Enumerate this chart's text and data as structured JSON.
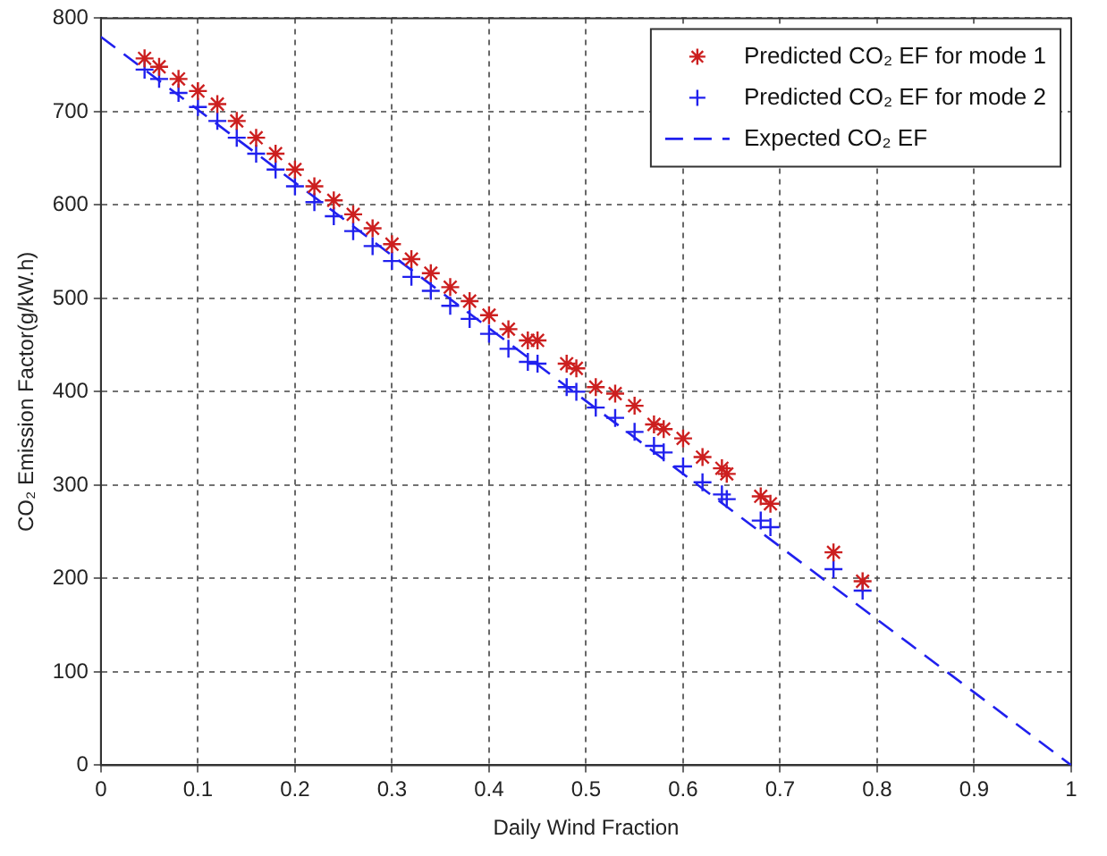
{
  "chart_data": {
    "type": "scatter",
    "xlabel": "Daily Wind Fraction",
    "ylabel": "CO₂ Emission Factor(g/kW.h)",
    "xlim": [
      0,
      1
    ],
    "xticks": [
      0,
      0.1,
      0.2,
      0.3,
      0.4,
      0.5,
      0.6,
      0.7,
      0.8,
      0.9,
      1
    ],
    "ylim": [
      0,
      800
    ],
    "yticks": [
      0,
      100,
      200,
      300,
      400,
      500,
      600,
      700,
      800
    ],
    "grid": true,
    "legend": "top right",
    "series": [
      {
        "name": "Predicted CO₂ EF for mode 1",
        "type": "scatter",
        "color": "#cc1f1f",
        "x": [
          0.045,
          0.06,
          0.08,
          0.1,
          0.12,
          0.14,
          0.16,
          0.18,
          0.2,
          0.22,
          0.24,
          0.26,
          0.28,
          0.3,
          0.32,
          0.34,
          0.36,
          0.38,
          0.4,
          0.42,
          0.44,
          0.45,
          0.48,
          0.49,
          0.51,
          0.53,
          0.55,
          0.57,
          0.58,
          0.6,
          0.62,
          0.64,
          0.645,
          0.68,
          0.69,
          0.755,
          0.785
        ],
        "values": [
          757,
          748,
          735,
          722,
          708,
          690,
          672,
          655,
          638,
          620,
          605,
          590,
          575,
          558,
          542,
          527,
          512,
          497,
          482,
          467,
          455,
          455,
          430,
          425,
          405,
          398,
          385,
          365,
          360,
          350,
          330,
          318,
          312,
          288,
          280,
          228,
          197
        ]
      },
      {
        "name": "Predicted CO₂ EF for mode 2",
        "type": "scatter",
        "marker": "cross",
        "color": "#2020ee",
        "x": [
          0.045,
          0.06,
          0.08,
          0.1,
          0.12,
          0.14,
          0.16,
          0.18,
          0.2,
          0.22,
          0.24,
          0.26,
          0.28,
          0.3,
          0.32,
          0.34,
          0.36,
          0.38,
          0.4,
          0.42,
          0.44,
          0.45,
          0.48,
          0.49,
          0.51,
          0.53,
          0.55,
          0.57,
          0.58,
          0.6,
          0.62,
          0.64,
          0.645,
          0.68,
          0.69,
          0.755,
          0.785
        ],
        "values": [
          745,
          735,
          720,
          705,
          690,
          672,
          655,
          638,
          620,
          603,
          588,
          572,
          556,
          540,
          523,
          508,
          492,
          478,
          462,
          446,
          432,
          430,
          405,
          400,
          383,
          372,
          357,
          342,
          335,
          320,
          303,
          290,
          285,
          262,
          255,
          210,
          187
        ]
      },
      {
        "name": "Expected CO₂ EF",
        "type": "line",
        "marker": "none",
        "line_style": "dashed",
        "color": "#2020ee",
        "x": [
          0,
          1
        ],
        "values": [
          780,
          0
        ]
      }
    ]
  }
}
